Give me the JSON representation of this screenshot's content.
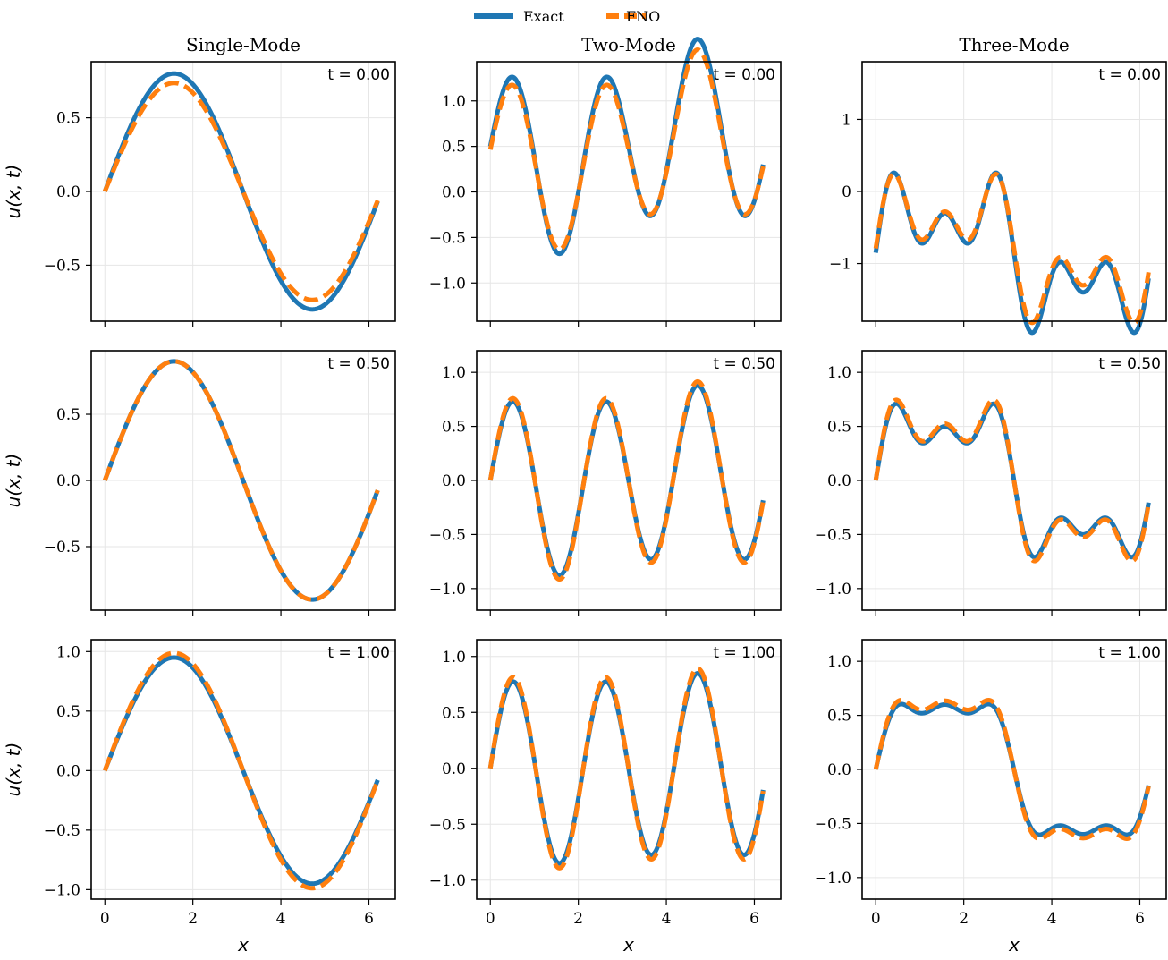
{
  "legend": {
    "exact_label": "Exact",
    "fno_label": "FNO"
  },
  "colors": {
    "exact": "#1f77b4",
    "fno": "#ff7f0e",
    "grid": "#e6e6e6",
    "axes": "#000000"
  },
  "axis_labels": {
    "x": "x",
    "y": "u(x, t)"
  },
  "chart_data": [
    {
      "type": "line",
      "row": 0,
      "col": 0,
      "column_title": "Single-Mode",
      "time_label": "t = 0.00",
      "xlim": [
        -0.31,
        6.6
      ],
      "ylim": [
        -0.88,
        0.88
      ],
      "xticks": [
        0,
        2,
        4,
        6
      ],
      "yticks": [
        -0.5,
        0.0,
        0.5
      ],
      "ytick_labels": [
        "−0.5",
        "0.0",
        "0.5"
      ],
      "modes": [
        {
          "k": 1,
          "a": 0.8
        }
      ],
      "fno_scale": 0.92
    },
    {
      "type": "line",
      "row": 0,
      "col": 1,
      "column_title": "Two-Mode",
      "time_label": "t = 0.00",
      "xlim": [
        -0.31,
        6.6
      ],
      "ylim": [
        -1.42,
        1.43
      ],
      "xticks": [
        0,
        2,
        4,
        6
      ],
      "yticks": [
        -1.0,
        -0.5,
        0.0,
        0.5,
        1.0
      ],
      "ytick_labels": [
        "−1.0",
        "−0.5",
        "0.0",
        "0.5",
        "1.0"
      ],
      "modes": [
        {
          "k": 1,
          "a": -0.28,
          "phase": 0.0
        },
        {
          "k": 3,
          "a": 0.9,
          "phase": 0.0
        },
        {
          "k": 0,
          "a": 0.5
        }
      ],
      "fno_scale": 0.93
    },
    {
      "type": "line",
      "row": 0,
      "col": 2,
      "column_title": "Three-Mode",
      "time_label": "t = 0.00",
      "xlim": [
        -0.31,
        6.6
      ],
      "ylim": [
        -1.8,
        1.8
      ],
      "xticks": [
        0,
        2,
        4,
        6
      ],
      "yticks": [
        -1,
        0,
        1
      ],
      "ytick_labels": [
        "−1",
        "0",
        "1"
      ],
      "modes": [
        {
          "k": 1,
          "a": 0.6
        },
        {
          "k": 3,
          "a": 0.5
        },
        {
          "k": 5,
          "a": 0.45
        },
        {
          "k": 0,
          "a": -0.85
        }
      ],
      "fno_scale": 0.93
    },
    {
      "type": "line",
      "row": 1,
      "col": 0,
      "column_title": "",
      "time_label": "t = 0.50",
      "xlim": [
        -0.31,
        6.6
      ],
      "ylim": [
        -0.98,
        0.98
      ],
      "xticks": [
        0,
        2,
        4,
        6
      ],
      "yticks": [
        -0.5,
        0.0,
        0.5
      ],
      "ytick_labels": [
        "−0.5",
        "0.0",
        "0.5"
      ],
      "modes": [
        {
          "k": 1,
          "a": 0.9
        }
      ],
      "fno_scale": 1.0
    },
    {
      "type": "line",
      "row": 1,
      "col": 1,
      "column_title": "",
      "time_label": "t = 0.50",
      "xlim": [
        -0.31,
        6.6
      ],
      "ylim": [
        -1.2,
        1.2
      ],
      "xticks": [
        0,
        2,
        4,
        6
      ],
      "yticks": [
        -1.0,
        -0.5,
        0.0,
        0.5,
        1.0
      ],
      "ytick_labels": [
        "−1.0",
        "−0.5",
        "0.0",
        "0.5",
        "1.0"
      ],
      "modes": [
        {
          "k": 1,
          "a": -0.1
        },
        {
          "k": 3,
          "a": 0.78
        },
        {
          "k": 0,
          "a": 0.0
        }
      ],
      "fno_scale": 1.04
    },
    {
      "type": "line",
      "row": 1,
      "col": 2,
      "column_title": "",
      "time_label": "t = 0.50",
      "xlim": [
        -0.31,
        6.6
      ],
      "ylim": [
        -1.2,
        1.2
      ],
      "xticks": [
        0,
        2,
        4,
        6
      ],
      "yticks": [
        -1.0,
        -0.5,
        0.0,
        0.5,
        1.0
      ],
      "ytick_labels": [
        "−1.0",
        "−0.5",
        "0.0",
        "0.5",
        "1.0"
      ],
      "modes": [
        {
          "k": 1,
          "a": 0.6
        },
        {
          "k": 3,
          "a": 0.3
        },
        {
          "k": 5,
          "a": 0.2
        }
      ],
      "fno_scale": 1.05
    },
    {
      "type": "line",
      "row": 2,
      "col": 0,
      "column_title": "",
      "time_label": "t = 1.00",
      "xlim": [
        -0.31,
        6.6
      ],
      "ylim": [
        -1.08,
        1.1
      ],
      "xticks": [
        0,
        2,
        4,
        6
      ],
      "yticks": [
        -1.0,
        -0.5,
        0.0,
        0.5,
        1.0
      ],
      "ytick_labels": [
        "−1.0",
        "−0.5",
        "0.0",
        "0.5",
        "1.0"
      ],
      "modes": [
        {
          "k": 1,
          "a": 0.95
        }
      ],
      "fno_scale": 1.04
    },
    {
      "type": "line",
      "row": 2,
      "col": 1,
      "column_title": "",
      "time_label": "t = 1.00",
      "xlim": [
        -0.31,
        6.6
      ],
      "ylim": [
        -1.17,
        1.15
      ],
      "xticks": [
        0,
        2,
        4,
        6
      ],
      "yticks": [
        -1.0,
        -0.5,
        0.0,
        0.5,
        1.0
      ],
      "ytick_labels": [
        "−1.0",
        "−0.5",
        "0.0",
        "0.5",
        "1.0"
      ],
      "modes": [
        {
          "k": 1,
          "a": -0.05
        },
        {
          "k": 3,
          "a": 0.8
        }
      ],
      "fno_scale": 1.05
    },
    {
      "type": "line",
      "row": 2,
      "col": 2,
      "column_title": "",
      "time_label": "t = 1.00",
      "xlim": [
        -0.31,
        6.6
      ],
      "ylim": [
        -1.2,
        1.2
      ],
      "xticks": [
        0,
        2,
        4,
        6
      ],
      "yticks": [
        -1.0,
        -0.5,
        0.0,
        0.5,
        1.0
      ],
      "ytick_labels": [
        "−1.0",
        "−0.5",
        "0.0",
        "0.5",
        "1.0"
      ],
      "modes": [
        {
          "k": 1,
          "a": 0.7
        },
        {
          "k": 3,
          "a": 0.2
        },
        {
          "k": 5,
          "a": 0.1
        }
      ],
      "fno_scale": 1.06
    }
  ]
}
